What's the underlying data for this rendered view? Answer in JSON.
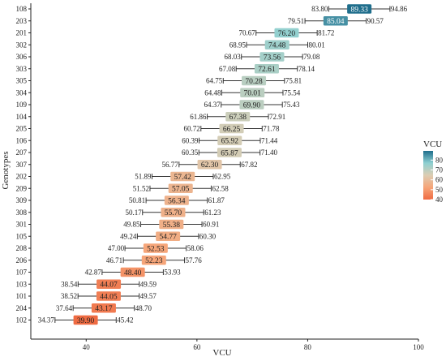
{
  "chart_data": {
    "type": "range",
    "xlabel": "VCU",
    "ylabel": "Genotypes",
    "xlim": [
      30,
      100
    ],
    "xticks": [
      40,
      60,
      80,
      100
    ],
    "grid": false,
    "legend": {
      "title": "VCU",
      "ticks": [
        40,
        50,
        60,
        70,
        80
      ],
      "range": [
        40,
        89.33
      ],
      "placement": "right",
      "colors": [
        "#ef6b42",
        "#f6a579",
        "#dccdb3",
        "#8ed0d1",
        "#1f6e8c"
      ]
    },
    "rows": [
      {
        "genotype": "108",
        "low": 83.8,
        "mean": 89.33,
        "high": 94.86
      },
      {
        "genotype": "203",
        "low": 79.51,
        "mean": 85.04,
        "high": 90.57
      },
      {
        "genotype": "201",
        "low": 70.67,
        "mean": 76.2,
        "high": 81.72
      },
      {
        "genotype": "302",
        "low": 68.95,
        "mean": 74.48,
        "high": 80.01
      },
      {
        "genotype": "306",
        "low": 68.03,
        "mean": 73.56,
        "high": 79.08
      },
      {
        "genotype": "303",
        "low": 67.08,
        "mean": 72.61,
        "high": 78.14
      },
      {
        "genotype": "305",
        "low": 64.75,
        "mean": 70.28,
        "high": 75.81
      },
      {
        "genotype": "304",
        "low": 64.48,
        "mean": 70.01,
        "high": 75.54
      },
      {
        "genotype": "109",
        "low": 64.37,
        "mean": 69.9,
        "high": 75.43
      },
      {
        "genotype": "104",
        "low": 61.86,
        "mean": 67.38,
        "high": 72.91
      },
      {
        "genotype": "205",
        "low": 60.72,
        "mean": 66.25,
        "high": 71.78
      },
      {
        "genotype": "106",
        "low": 60.39,
        "mean": 65.92,
        "high": 71.44
      },
      {
        "genotype": "207",
        "low": 60.35,
        "mean": 65.87,
        "high": 71.4
      },
      {
        "genotype": "307",
        "low": 56.77,
        "mean": 62.3,
        "high": 67.82
      },
      {
        "genotype": "202",
        "low": 51.89,
        "mean": 57.42,
        "high": 62.95
      },
      {
        "genotype": "209",
        "low": 51.52,
        "mean": 57.05,
        "high": 62.58
      },
      {
        "genotype": "309",
        "low": 50.81,
        "mean": 56.34,
        "high": 61.87
      },
      {
        "genotype": "308",
        "low": 50.17,
        "mean": 55.7,
        "high": 61.23
      },
      {
        "genotype": "301",
        "low": 49.85,
        "mean": 55.38,
        "high": 60.91
      },
      {
        "genotype": "105",
        "low": 49.24,
        "mean": 54.77,
        "high": 60.3
      },
      {
        "genotype": "208",
        "low": 47.0,
        "mean": 52.53,
        "high": 58.06
      },
      {
        "genotype": "206",
        "low": 46.71,
        "mean": 52.23,
        "high": 57.76
      },
      {
        "genotype": "107",
        "low": 42.87,
        "mean": 48.4,
        "high": 53.93
      },
      {
        "genotype": "103",
        "low": 38.54,
        "mean": 44.07,
        "high": 49.59
      },
      {
        "genotype": "101",
        "low": 38.52,
        "mean": 44.05,
        "high": 49.57
      },
      {
        "genotype": "204",
        "low": 37.64,
        "mean": 43.17,
        "high": 48.7
      },
      {
        "genotype": "102",
        "low": 34.37,
        "mean": 39.9,
        "high": 45.42
      }
    ]
  }
}
